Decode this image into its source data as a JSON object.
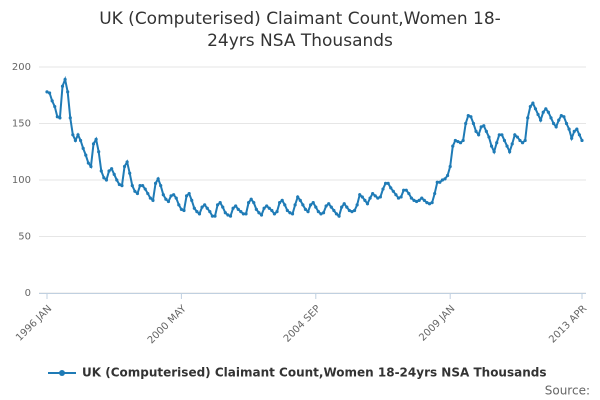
{
  "chart_data": {
    "type": "line",
    "title": "UK (Computerised) Claimant Count,Women 18-24yrs NSA Thousands",
    "source": "Source:",
    "categories": [
      "1996 JAN",
      null,
      null,
      null,
      null,
      null,
      null,
      null,
      null,
      null,
      null,
      null,
      null,
      null,
      null,
      null,
      null,
      null,
      null,
      null,
      null,
      null,
      null,
      null,
      null,
      null,
      null,
      null,
      null,
      null,
      null,
      null,
      null,
      null,
      null,
      null,
      null,
      null,
      null,
      null,
      null,
      null,
      null,
      null,
      null,
      null,
      null,
      null,
      null,
      null,
      null,
      null,
      "2000 MAY",
      null,
      null,
      null,
      null,
      null,
      null,
      null,
      null,
      null,
      null,
      null,
      null,
      null,
      null,
      null,
      null,
      null,
      null,
      null,
      null,
      null,
      null,
      null,
      null,
      null,
      null,
      null,
      null,
      null,
      null,
      null,
      null,
      null,
      null,
      null,
      null,
      null,
      null,
      null,
      null,
      null,
      null,
      null,
      null,
      null,
      null,
      null,
      null,
      null,
      null,
      null,
      "2004 SEP",
      null,
      null,
      null,
      null,
      null,
      null,
      null,
      null,
      null,
      null,
      null,
      null,
      null,
      null,
      null,
      null,
      null,
      null,
      null,
      null,
      null,
      null,
      null,
      null,
      null,
      null,
      null,
      null,
      null,
      null,
      null,
      null,
      null,
      null,
      null,
      null,
      null,
      null,
      null,
      null,
      null,
      null,
      null,
      null,
      null,
      null,
      null,
      null,
      null,
      null,
      null,
      "2009 JAN",
      null,
      null,
      null,
      null,
      null,
      null,
      null,
      null,
      null,
      null,
      null,
      null,
      null,
      null,
      null,
      null,
      null,
      null,
      null,
      null,
      null,
      null,
      null,
      null,
      null,
      null,
      null,
      null,
      null,
      null,
      null,
      null,
      null,
      null,
      null,
      null,
      null,
      null,
      null,
      null,
      null,
      null,
      null,
      null,
      null,
      null,
      null,
      null,
      null,
      null,
      "2013 APR"
    ],
    "series": [
      {
        "name": "UK (Computerised) Claimant Count,Women 18-24yrs NSA Thousands",
        "color": "#1f7bb6",
        "values": [
          178,
          177,
          170,
          165,
          156,
          155,
          183,
          189,
          178,
          155,
          140,
          135,
          140,
          135,
          128,
          122,
          115,
          112,
          132,
          136,
          125,
          108,
          102,
          100,
          108,
          110,
          105,
          100,
          96,
          95,
          112,
          116,
          106,
          95,
          90,
          88,
          95,
          95,
          92,
          88,
          84,
          82,
          97,
          101,
          95,
          87,
          83,
          81,
          86,
          87,
          84,
          78,
          74,
          73,
          86,
          88,
          82,
          75,
          72,
          70,
          76,
          78,
          75,
          72,
          68,
          68,
          78,
          80,
          76,
          71,
          69,
          68,
          75,
          77,
          74,
          72,
          70,
          70,
          80,
          83,
          80,
          74,
          71,
          69,
          75,
          77,
          75,
          73,
          70,
          72,
          80,
          82,
          78,
          73,
          71,
          70,
          78,
          85,
          82,
          78,
          74,
          72,
          78,
          80,
          76,
          72,
          70,
          71,
          77,
          79,
          76,
          73,
          70,
          68,
          76,
          79,
          76,
          73,
          72,
          73,
          78,
          87,
          85,
          82,
          79,
          84,
          88,
          86,
          84,
          85,
          92,
          97,
          97,
          93,
          90,
          87,
          84,
          85,
          91,
          91,
          88,
          84,
          82,
          81,
          82,
          84,
          82,
          80,
          79,
          80,
          88,
          98,
          98,
          100,
          101,
          104,
          112,
          130,
          135,
          134,
          133,
          135,
          150,
          157,
          156,
          150,
          143,
          140,
          147,
          148,
          143,
          138,
          130,
          125,
          133,
          140,
          140,
          135,
          130,
          125,
          132,
          140,
          138,
          135,
          133,
          135,
          155,
          165,
          168,
          163,
          158,
          153,
          160,
          163,
          160,
          155,
          150,
          147,
          153,
          157,
          156,
          150,
          145,
          137,
          143,
          145,
          140,
          135
        ]
      }
    ],
    "ylim": [
      0,
      200
    ],
    "yticks": [
      0,
      50,
      100,
      150,
      200
    ],
    "grid": true
  }
}
